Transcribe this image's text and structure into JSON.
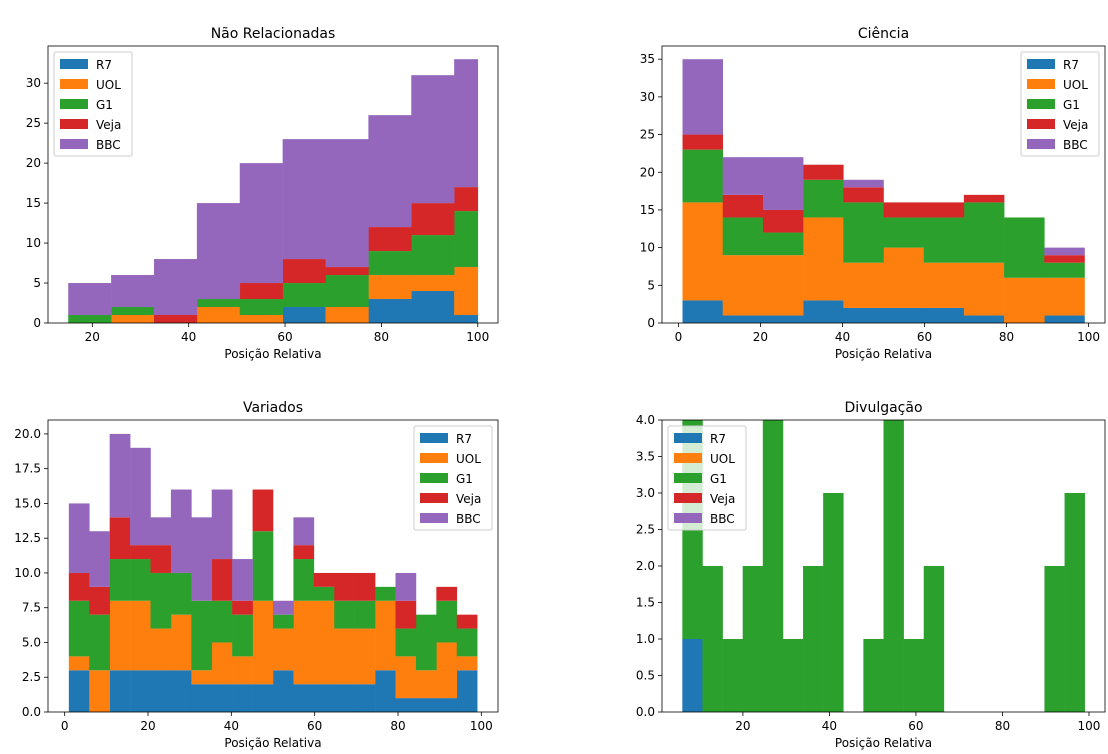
{
  "colors": {
    "R7": "#1f77b4",
    "UOL": "#ff7f0e",
    "G1": "#2ca02c",
    "Veja": "#d62728",
    "BBC": "#9467bd"
  },
  "chart_data": [
    {
      "type": "bar",
      "title": "Não Relacionadas",
      "xlabel": "Posição Relativa",
      "ylabel": "",
      "xlim": [
        10.8,
        104.2
      ],
      "ylim": [
        0,
        34.65
      ],
      "xticks": [
        20,
        40,
        60,
        80,
        100
      ],
      "yticks": [
        0,
        5,
        10,
        15,
        20,
        25,
        30
      ],
      "ytick_labels": [
        "0",
        "5",
        "10",
        "15",
        "20",
        "25",
        "30"
      ],
      "legend": "top-left",
      "bin_edges": [
        15,
        23.9,
        32.8,
        41.7,
        50.6,
        59.5,
        68.4,
        77.3,
        86.2,
        95.1,
        100
      ],
      "series": [
        {
          "name": "R7",
          "values": [
            0,
            0,
            0,
            0,
            0,
            2,
            0,
            3,
            4,
            1
          ]
        },
        {
          "name": "UOL",
          "values": [
            0,
            1,
            0,
            2,
            1,
            0,
            2,
            3,
            2,
            6
          ]
        },
        {
          "name": "G1",
          "values": [
            1,
            1,
            0,
            1,
            2,
            3,
            4,
            3,
            5,
            7
          ]
        },
        {
          "name": "Veja",
          "values": [
            0,
            0,
            1,
            0,
            2,
            3,
            1,
            3,
            4,
            3
          ]
        },
        {
          "name": "BBC",
          "values": [
            4,
            4,
            7,
            12,
            15,
            15,
            16,
            14,
            16,
            16
          ]
        }
      ]
    },
    {
      "type": "bar",
      "title": "Ciência",
      "xlabel": "Posição Relativa",
      "ylabel": "",
      "xlim": [
        -4,
        104
      ],
      "ylim": [
        0,
        36.75
      ],
      "xticks": [
        0,
        20,
        40,
        60,
        80,
        100
      ],
      "yticks": [
        0,
        5,
        10,
        15,
        20,
        25,
        30,
        35
      ],
      "ytick_labels": [
        "0",
        "5",
        "10",
        "15",
        "20",
        "25",
        "30",
        "35"
      ],
      "legend": "top-right",
      "bin_edges": [
        1,
        10.8,
        20.6,
        30.4,
        40.2,
        50,
        59.8,
        69.6,
        79.4,
        89.2,
        99
      ],
      "series": [
        {
          "name": "R7",
          "values": [
            3,
            1,
            1,
            3,
            2,
            2,
            2,
            1,
            0,
            1
          ]
        },
        {
          "name": "UOL",
          "values": [
            13,
            8,
            8,
            11,
            6,
            8,
            6,
            7,
            6,
            5
          ]
        },
        {
          "name": "G1",
          "values": [
            7,
            5,
            3,
            5,
            8,
            4,
            6,
            8,
            8,
            2
          ]
        },
        {
          "name": "Veja",
          "values": [
            2,
            3,
            3,
            2,
            2,
            2,
            2,
            1,
            0,
            1
          ]
        },
        {
          "name": "BBC",
          "values": [
            10,
            5,
            7,
            0,
            1,
            0,
            0,
            0,
            0,
            1
          ]
        }
      ]
    },
    {
      "type": "bar",
      "title": "Variados",
      "xlabel": "Posição Relativa",
      "ylabel": "",
      "xlim": [
        -4,
        104
      ],
      "ylim": [
        0,
        21
      ],
      "xticks": [
        0,
        20,
        40,
        60,
        80,
        100
      ],
      "yticks": [
        0,
        2.5,
        5,
        7.5,
        10,
        12.5,
        15,
        17.5,
        20
      ],
      "ytick_labels": [
        "0.0",
        "2.5",
        "5.0",
        "7.5",
        "10.0",
        "12.5",
        "15.0",
        "17.5",
        "20.0"
      ],
      "legend": "top-right",
      "bin_edges": [
        1,
        5.9,
        10.8,
        15.7,
        20.6,
        25.5,
        30.4,
        35.3,
        40.2,
        45.1,
        50,
        54.9,
        59.8,
        64.7,
        69.6,
        74.5,
        79.4,
        84.3,
        89.2,
        94.1,
        99
      ],
      "series": [
        {
          "name": "R7",
          "values": [
            3,
            0,
            3,
            3,
            3,
            3,
            2,
            2,
            2,
            2,
            3,
            2,
            2,
            2,
            2,
            3,
            1,
            1,
            1,
            3
          ]
        },
        {
          "name": "UOL",
          "values": [
            1,
            3,
            5,
            5,
            3,
            4,
            1,
            3,
            2,
            6,
            3,
            6,
            6,
            4,
            4,
            5,
            3,
            2,
            4,
            1
          ]
        },
        {
          "name": "G1",
          "values": [
            4,
            4,
            3,
            3,
            4,
            3,
            5,
            3,
            3,
            5,
            1,
            3,
            1,
            2,
            2,
            1,
            2,
            4,
            3,
            2
          ]
        },
        {
          "name": "Veja",
          "values": [
            2,
            2,
            3,
            1,
            2,
            0,
            0,
            3,
            1,
            3,
            0,
            1,
            1,
            2,
            2,
            0,
            2,
            0,
            1,
            1
          ]
        },
        {
          "name": "BBC",
          "values": [
            5,
            4,
            6,
            7,
            2,
            6,
            6,
            5,
            3,
            0,
            1,
            2,
            0,
            0,
            0,
            0,
            2,
            0,
            0,
            0
          ]
        }
      ]
    },
    {
      "type": "bar",
      "title": "Divulgação",
      "xlabel": "Posição Relativa",
      "ylabel": "",
      "xlim": [
        1.3,
        103.7
      ],
      "ylim": [
        0,
        4
      ],
      "xticks": [
        20,
        40,
        60,
        80,
        100
      ],
      "yticks": [
        0,
        0.5,
        1,
        1.5,
        2,
        2.5,
        3,
        3.5,
        4
      ],
      "ytick_labels": [
        "0.0",
        "0.5",
        "1.0",
        "1.5",
        "2.0",
        "2.5",
        "3.0",
        "3.5",
        "4.0"
      ],
      "legend": "top-left",
      "bin_edges": [
        6,
        10.65,
        15.3,
        19.95,
        24.6,
        29.25,
        33.9,
        38.55,
        43.2,
        47.85,
        52.5,
        57.15,
        61.8,
        66.45,
        71.1,
        75.75,
        80.4,
        85.05,
        89.7,
        94.35,
        99
      ],
      "series": [
        {
          "name": "R7",
          "values": [
            1,
            0,
            0,
            0,
            0,
            0,
            0,
            0,
            0,
            0,
            0,
            0,
            0,
            0,
            0,
            0,
            0,
            0,
            0,
            0
          ]
        },
        {
          "name": "UOL",
          "values": [
            0,
            0,
            0,
            0,
            0,
            0,
            0,
            0,
            0,
            0,
            0,
            0,
            0,
            0,
            0,
            0,
            0,
            0,
            0,
            0
          ]
        },
        {
          "name": "G1",
          "values": [
            4,
            2,
            1,
            2,
            4,
            1,
            2,
            3,
            0,
            1,
            4,
            1,
            2,
            0,
            0,
            0,
            0,
            0,
            2,
            3
          ]
        },
        {
          "name": "Veja",
          "values": [
            0,
            0,
            0,
            0,
            0,
            0,
            0,
            0,
            0,
            0,
            0,
            0,
            0,
            0,
            0,
            0,
            0,
            0,
            0,
            0
          ]
        },
        {
          "name": "BBC",
          "values": [
            0,
            0,
            0,
            0,
            0,
            0,
            0,
            0,
            0,
            0,
            0,
            0,
            0,
            0,
            0,
            0,
            0,
            0,
            0,
            0
          ]
        }
      ]
    }
  ]
}
